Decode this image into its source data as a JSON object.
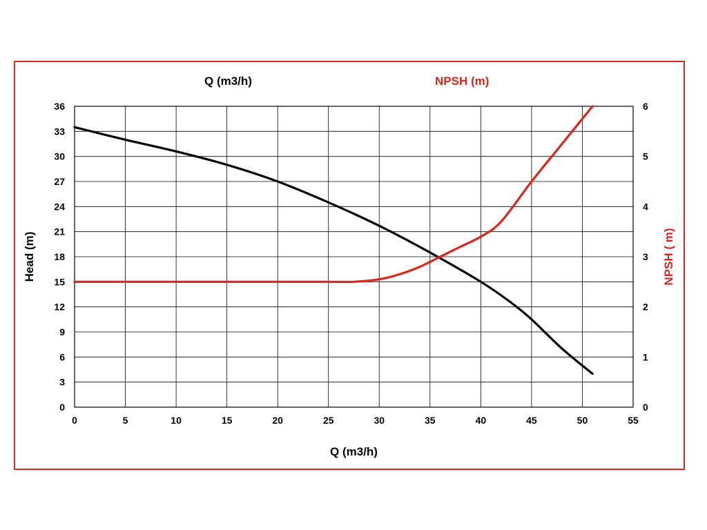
{
  "chart_data": {
    "type": "line",
    "legend": [
      {
        "label": "Q (m3/h)",
        "color": "#000000",
        "series": "head"
      },
      {
        "label": "NPSH (m)",
        "color": "#e2231a",
        "series": "npsh"
      }
    ],
    "xlabel": "Q (m3/h)",
    "ylabel_left": "Head (m)",
    "ylabel_right": "NPSH ( m)",
    "xlim": [
      0,
      55
    ],
    "ylim_left": [
      0,
      36
    ],
    "ylim_right": [
      0,
      6
    ],
    "x_ticks": [
      "0",
      "5",
      "10",
      "15",
      "20",
      "25",
      "30",
      "35",
      "40",
      "45",
      "50",
      "55"
    ],
    "y_left_ticks": [
      "0",
      "3",
      "6",
      "9",
      "12",
      "15",
      "18",
      "21",
      "24",
      "27",
      "30",
      "33",
      "36"
    ],
    "y_right_ticks": [
      "0",
      "1",
      "2",
      "3",
      "4",
      "5",
      "6"
    ],
    "grid": true,
    "series": [
      {
        "name": "Head",
        "axis": "left",
        "color": "#000000",
        "x": [
          0,
          5,
          10,
          15,
          20,
          25,
          30,
          35,
          40,
          43,
          45,
          48,
          51
        ],
        "y": [
          33.5,
          32,
          30.6,
          29,
          27,
          24.5,
          21.7,
          18.5,
          15,
          12.5,
          10.5,
          7,
          4
        ]
      },
      {
        "name": "NPSH",
        "axis": "right",
        "color": "#e2231a",
        "x": [
          0,
          5,
          10,
          15,
          20,
          25,
          27.5,
          30,
          32,
          34,
          36,
          38,
          40,
          42,
          45,
          48,
          51
        ],
        "y": [
          2.5,
          2.5,
          2.5,
          2.5,
          2.5,
          2.5,
          2.5,
          2.55,
          2.65,
          2.8,
          3.0,
          3.2,
          3.4,
          3.7,
          4.5,
          5.25,
          6.0
        ]
      }
    ]
  }
}
